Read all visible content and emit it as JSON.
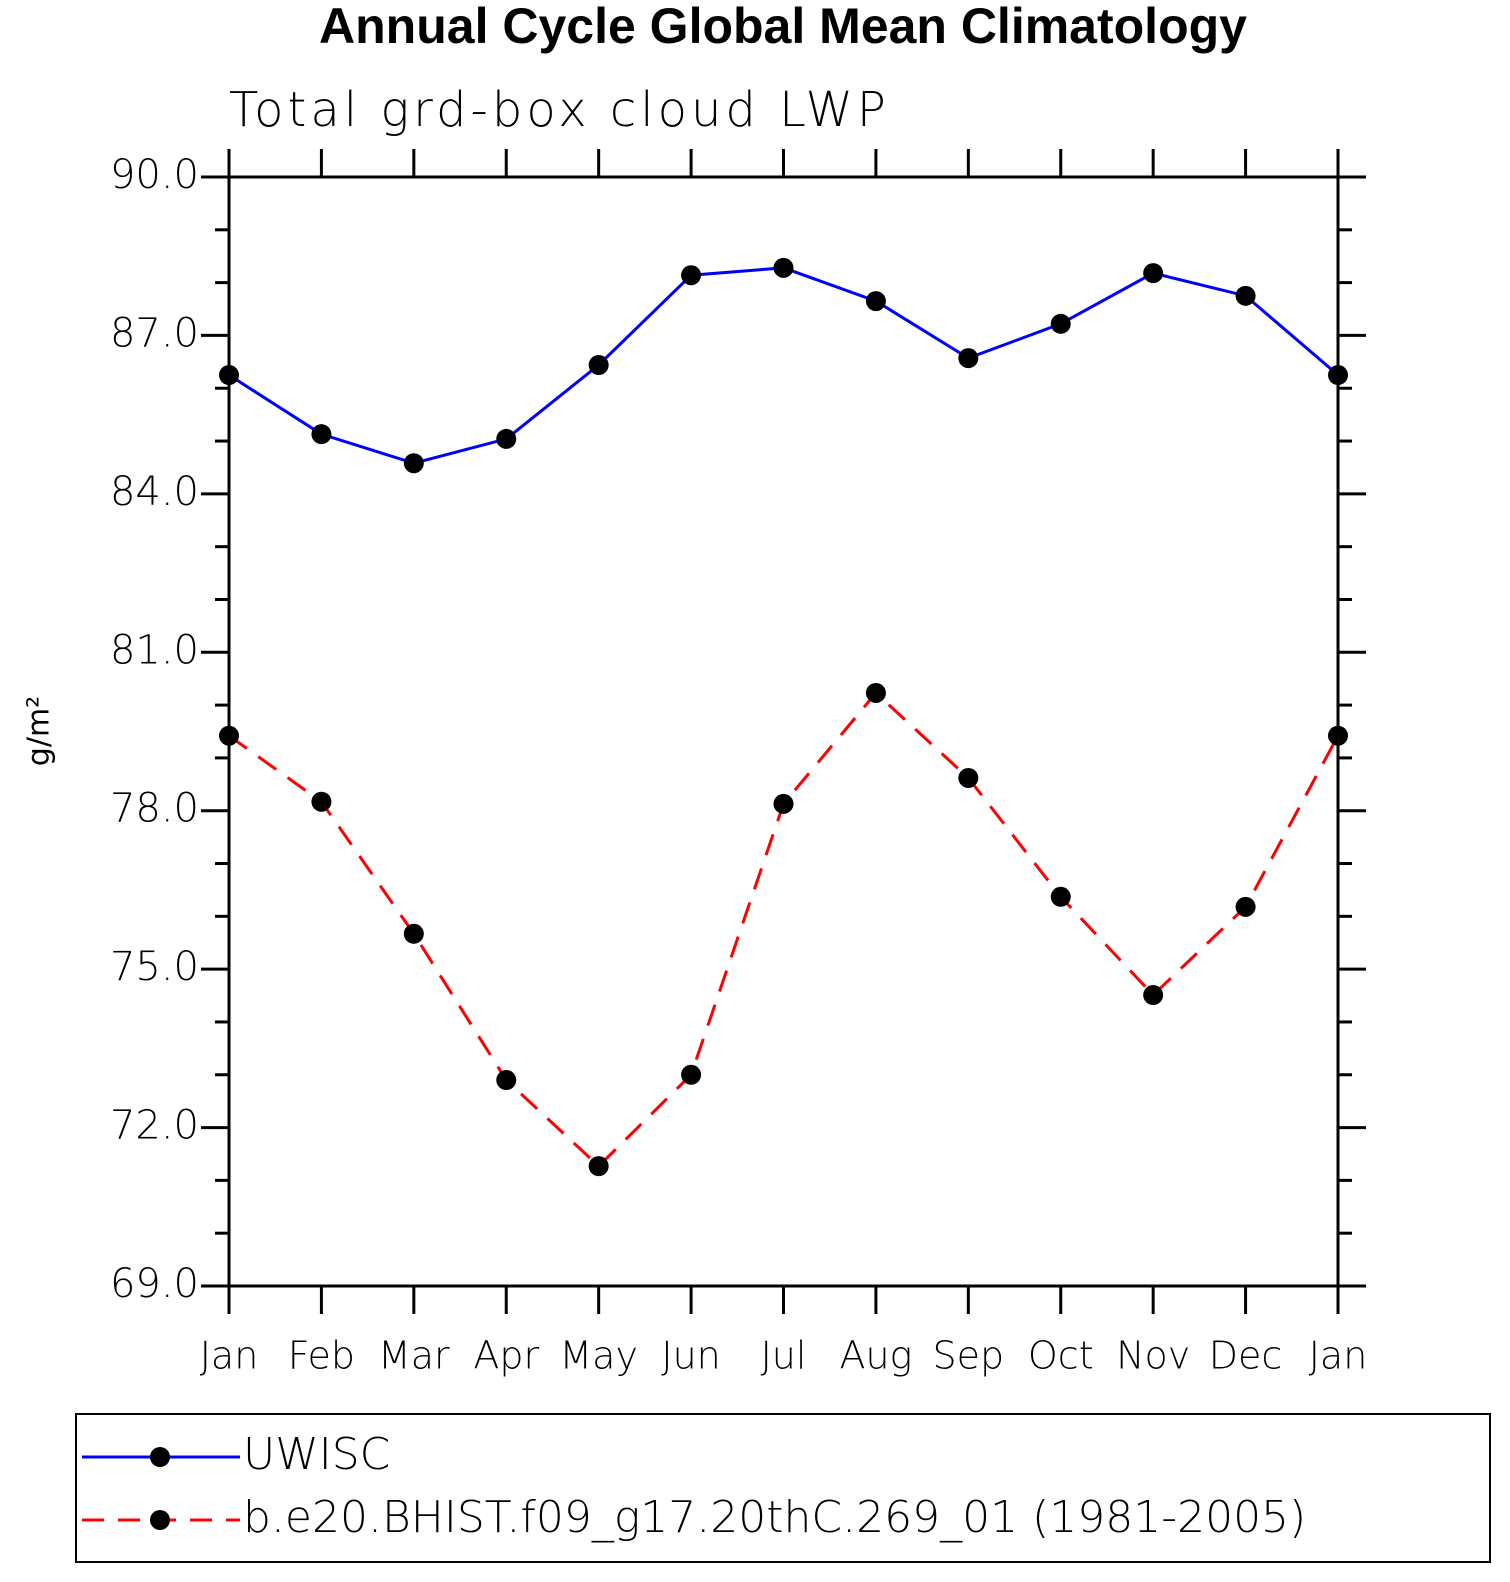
{
  "chart_data": {
    "type": "line",
    "title": "Annual Cycle Global Mean Climatology",
    "subtitle": "Total grd-box cloud LWP",
    "y_label": "g/m²",
    "categories": [
      "Jan",
      "Feb",
      "Mar",
      "Apr",
      "May",
      "Jun",
      "Jul",
      "Aug",
      "Sep",
      "Oct",
      "Nov",
      "Dec",
      "Jan"
    ],
    "series": [
      {
        "name": "UWISC",
        "color": "#0000ff",
        "dash": "solid",
        "values": [
          86.25,
          85.13,
          84.58,
          85.04,
          86.44,
          88.14,
          88.28,
          87.65,
          86.57,
          87.22,
          88.18,
          87.75,
          86.25
        ]
      },
      {
        "name": "b.e20.BHIST.f09_g17.20thC.269_01 (1981-2005)",
        "color": "#ff0000",
        "dash": "dashed",
        "values": [
          79.42,
          78.17,
          75.67,
          72.9,
          71.27,
          73.0,
          78.13,
          80.23,
          78.62,
          76.37,
          74.51,
          76.18,
          79.42
        ]
      }
    ],
    "ylim": [
      69,
      90
    ],
    "yticks": [
      {
        "value": 69,
        "label": "69.0"
      },
      {
        "value": 72,
        "label": "72.0"
      },
      {
        "value": 75,
        "label": "75.0"
      },
      {
        "value": 78,
        "label": "78.0"
      },
      {
        "value": 81,
        "label": "81.0"
      },
      {
        "value": 84,
        "label": "84.0"
      },
      {
        "value": 87,
        "label": "87.0"
      },
      {
        "value": 90,
        "label": "90.0"
      }
    ],
    "yminorticks": [
      70,
      71,
      73,
      74,
      76,
      77,
      79,
      80,
      82,
      83,
      85,
      86,
      88,
      89
    ],
    "grid": false,
    "legend": "bottom"
  }
}
